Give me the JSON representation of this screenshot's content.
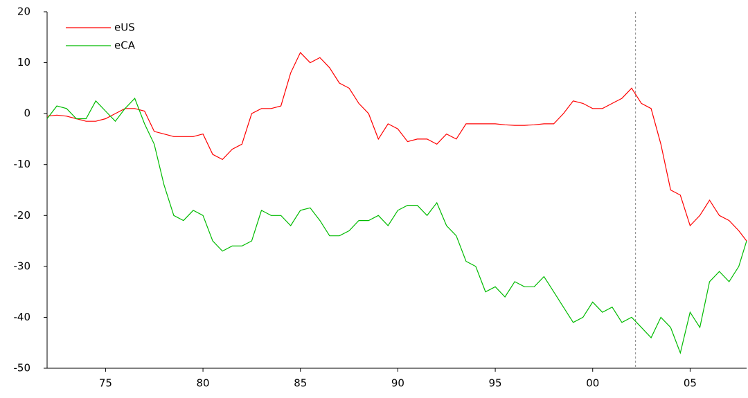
{
  "chart_data": {
    "type": "line",
    "x": [
      1972,
      1972.5,
      1973,
      1973.5,
      1974,
      1974.5,
      1975,
      1975.5,
      1976,
      1976.5,
      1977,
      1977.5,
      1978,
      1978.5,
      1979,
      1979.5,
      1980,
      1980.5,
      1981,
      1981.5,
      1982,
      1982.5,
      1983,
      1983.5,
      1984,
      1984.5,
      1985,
      1985.5,
      1986,
      1986.5,
      1987,
      1987.5,
      1988,
      1988.5,
      1989,
      1989.5,
      1990,
      1990.5,
      1991,
      1991.5,
      1992,
      1992.5,
      1993,
      1993.5,
      1994,
      1994.5,
      1995,
      1995.5,
      1996,
      1996.5,
      1997,
      1997.5,
      1998,
      1998.5,
      1999,
      1999.5,
      2000,
      2000.5,
      2001,
      2001.5,
      2002,
      2002.5,
      2003,
      2003.5,
      2004,
      2004.5,
      2005,
      2005.5,
      2006,
      2006.5,
      2007,
      2007.5,
      2007.9
    ],
    "series": [
      {
        "name": "eUS",
        "color": "#ff0000",
        "values": [
          -0.5,
          -0.3,
          -0.5,
          -1,
          -1.5,
          -1.5,
          -1,
          0,
          1,
          1,
          0.5,
          -3.5,
          -4,
          -4.5,
          -4.5,
          -4.5,
          -4,
          -8,
          -9,
          -7,
          -6,
          0,
          1,
          1,
          1.5,
          8,
          12,
          10,
          11,
          9,
          6,
          5,
          2,
          0,
          -5,
          -2,
          -3,
          -5.5,
          -5,
          -5,
          -6,
          -4,
          -5,
          -2,
          -2,
          -2,
          -2,
          -2.2,
          -2.3,
          -2.3,
          -2.2,
          -2,
          -2,
          0,
          2.5,
          2,
          1,
          1,
          2,
          3,
          5,
          2,
          1,
          -6,
          -15,
          -16,
          -22,
          -20,
          -17,
          -20,
          -21,
          -23,
          -25
        ]
      },
      {
        "name": "eCA",
        "color": "#00bb00",
        "values": [
          -1,
          1.5,
          1,
          -1,
          -1,
          2.5,
          0.5,
          -1.5,
          1,
          3,
          -2,
          -6,
          -14,
          -20,
          -21,
          -19,
          -20,
          -25,
          -27,
          -26,
          -26,
          -25,
          -19,
          -20,
          -20,
          -22,
          -19,
          -18.5,
          -21,
          -24,
          -24,
          -23,
          -21,
          -21,
          -20,
          -22,
          -19,
          -18,
          -18,
          -20,
          -17.5,
          -22,
          -24,
          -29,
          -30,
          -35,
          -34,
          -36,
          -33,
          -34,
          -34,
          -32,
          -35,
          -38,
          -41,
          -40,
          -37,
          -39,
          -38,
          -41,
          -40,
          -42,
          -44,
          -40,
          -42,
          -47,
          -39,
          -42,
          -33,
          -31,
          -33,
          -30,
          -25
        ]
      }
    ],
    "xlim": [
      1972,
      2007.9
    ],
    "xticks": [
      {
        "value": 1975,
        "label": "75"
      },
      {
        "value": 1980,
        "label": "80"
      },
      {
        "value": 1985,
        "label": "85"
      },
      {
        "value": 1990,
        "label": "90"
      },
      {
        "value": 1995,
        "label": "95"
      },
      {
        "value": 2000,
        "label": "00"
      },
      {
        "value": 2005,
        "label": "05"
      }
    ],
    "ylim": [
      -50,
      20
    ],
    "yticks": [
      -50,
      -40,
      -30,
      -20,
      -10,
      0,
      10,
      20
    ],
    "vlines": [
      2002.2
    ],
    "legend": "upper-left"
  }
}
